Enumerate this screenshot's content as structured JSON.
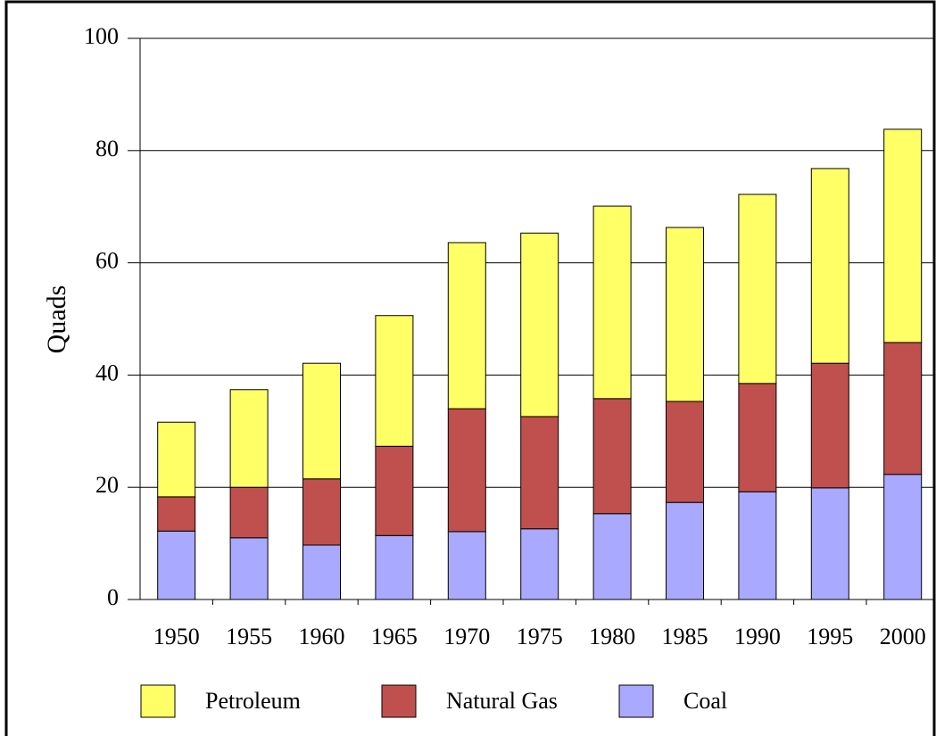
{
  "chart_data": {
    "type": "stacked_bar",
    "y_label": "Quads",
    "categories": [
      "1950",
      "1955",
      "1960",
      "1965",
      "1970",
      "1975",
      "1980",
      "1985",
      "1990",
      "1995",
      "2000"
    ],
    "series": [
      {
        "name": "Petroleum",
        "color": "#ffff66",
        "values": [
          13.3,
          17.4,
          20.6,
          23.3,
          29.6,
          32.7,
          34.3,
          31.0,
          33.7,
          34.7,
          38.0
        ]
      },
      {
        "name": "Natural Gas",
        "color": "#c0504d",
        "values": [
          6.1,
          9.0,
          11.8,
          15.9,
          21.9,
          20.0,
          20.5,
          18.0,
          19.3,
          22.2,
          23.5
        ]
      },
      {
        "name": "Coal",
        "color": "#a9a9ff",
        "values": [
          12.2,
          11.0,
          9.7,
          11.4,
          12.1,
          12.6,
          15.3,
          17.3,
          19.2,
          19.9,
          22.3
        ]
      }
    ],
    "ylim": [
      0,
      100
    ],
    "yticks": [
      0,
      20,
      40,
      60,
      80,
      100
    ],
    "grid": true
  }
}
